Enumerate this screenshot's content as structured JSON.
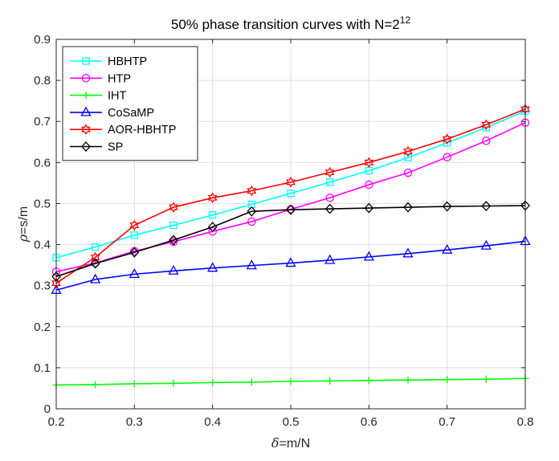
{
  "chart_data": {
    "type": "line",
    "title_main": "50% phase transition curves with N=2",
    "title_sup": "12",
    "xlabel_symbol": "δ",
    "xlabel_rest": "=m/N",
    "ylabel_symbol": "ρ",
    "ylabel_rest": "=s/m",
    "xlim": [
      0.2,
      0.8
    ],
    "ylim": [
      0,
      0.9
    ],
    "xticks": [
      "0.2",
      "0.3",
      "0.4",
      "0.5",
      "0.6",
      "0.7",
      "0.8"
    ],
    "yticks": [
      "0",
      "0.1",
      "0.2",
      "0.3",
      "0.4",
      "0.5",
      "0.6",
      "0.7",
      "0.8",
      "0.9"
    ],
    "grid": true,
    "legend_position": "top-left",
    "x": [
      0.2,
      0.25,
      0.3,
      0.35,
      0.4,
      0.45,
      0.5,
      0.55,
      0.6,
      0.65,
      0.7,
      0.75,
      0.8
    ],
    "series": [
      {
        "name": "HBHTP",
        "color": "#00FFFF",
        "marker": "square",
        "values": [
          0.368,
          0.394,
          0.423,
          0.447,
          0.472,
          0.498,
          0.525,
          0.552,
          0.58,
          0.612,
          0.648,
          0.685,
          0.725
        ]
      },
      {
        "name": "HTP",
        "color": "#FF00FF",
        "marker": "circle",
        "values": [
          0.334,
          0.355,
          0.384,
          0.407,
          0.432,
          0.456,
          0.486,
          0.514,
          0.546,
          0.575,
          0.613,
          0.653,
          0.697
        ]
      },
      {
        "name": "IHT",
        "color": "#00FF00",
        "marker": "plus",
        "values": [
          0.058,
          0.059,
          0.061,
          0.062,
          0.064,
          0.065,
          0.067,
          0.068,
          0.069,
          0.07,
          0.071,
          0.072,
          0.074
        ]
      },
      {
        "name": "CoSaMP",
        "color": "#0000FF",
        "marker": "triangle",
        "values": [
          0.289,
          0.315,
          0.328,
          0.336,
          0.343,
          0.349,
          0.355,
          0.362,
          0.37,
          0.378,
          0.387,
          0.397,
          0.408
        ]
      },
      {
        "name": "AOR-HBHTP",
        "color": "#FF0000",
        "marker": "hexagram",
        "values": [
          0.306,
          0.369,
          0.447,
          0.491,
          0.514,
          0.531,
          0.552,
          0.576,
          0.6,
          0.627,
          0.657,
          0.692,
          0.73
        ]
      },
      {
        "name": "SP",
        "color": "#000000",
        "marker": "diamond",
        "values": [
          0.322,
          0.354,
          0.381,
          0.411,
          0.443,
          0.481,
          0.485,
          0.487,
          0.489,
          0.491,
          0.493,
          0.494,
          0.495
        ]
      }
    ]
  }
}
